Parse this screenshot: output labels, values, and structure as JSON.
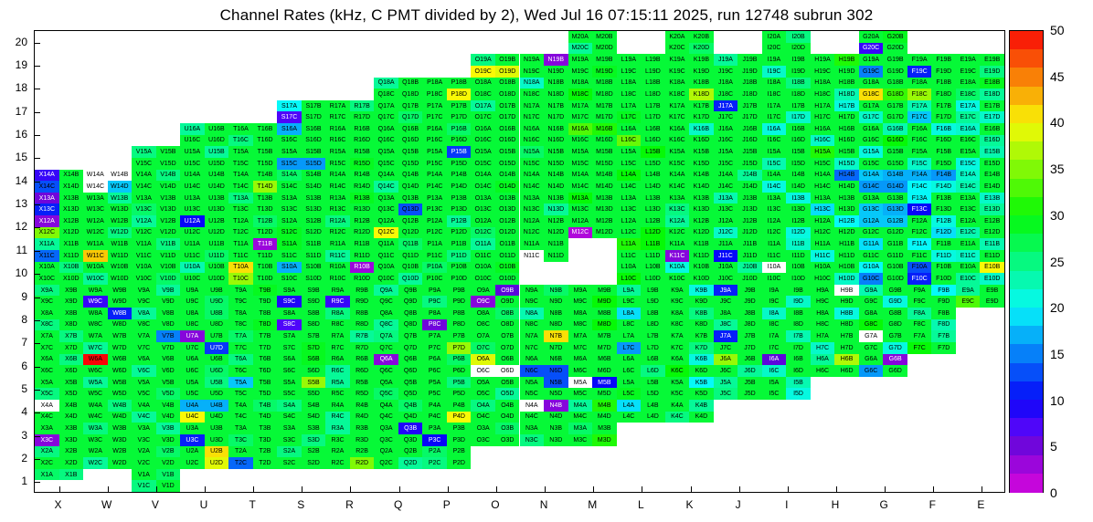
{
  "chart_data": {
    "type": "heatmap",
    "title": "Channel Rates (kHz, C PMT divided by 2), Wed Jul 16 07:15:11 2025, run 12748 subrun 302",
    "unit": "kHz",
    "run": 12748,
    "subrun": 302,
    "timestamp_text": "Wed Jul 16 07:15:11 2025",
    "x_labels": [
      "X",
      "W",
      "V",
      "U",
      "T",
      "S",
      "R",
      "Q",
      "P",
      "O",
      "N",
      "M",
      "L",
      "K",
      "J",
      "I",
      "H",
      "G",
      "F",
      "E"
    ],
    "y_labels": [
      1,
      2,
      3,
      4,
      5,
      6,
      7,
      8,
      9,
      10,
      11,
      12,
      13,
      14,
      15,
      16,
      17,
      18,
      19,
      20
    ],
    "sub_cells": [
      "A",
      "B",
      "C",
      "D"
    ],
    "colorbar": {
      "min": 0,
      "max": 50,
      "ticks": [
        0,
        5,
        10,
        15,
        20,
        25,
        30,
        35,
        40,
        45,
        50
      ],
      "position": "right"
    },
    "grid": false,
    "default_value": 28,
    "rows": [
      {
        "n": 20,
        "cols": [
          "M",
          "K",
          "I",
          "G"
        ]
      },
      {
        "n": 19,
        "cols": [
          "O",
          "N",
          "M",
          "L",
          "K",
          "J",
          "I",
          "H",
          "G",
          "F",
          "E"
        ]
      },
      {
        "n": 18,
        "cols": [
          "Q",
          "P",
          "O",
          "N",
          "M",
          "L",
          "K",
          "J",
          "I",
          "H",
          "G",
          "F",
          "E"
        ]
      },
      {
        "n": 17,
        "cols": [
          "S",
          "R",
          "Q",
          "P",
          "O",
          "N",
          "M",
          "L",
          "K",
          "J",
          "I",
          "H",
          "G",
          "F",
          "E"
        ]
      },
      {
        "n": 16,
        "cols": [
          "U",
          "T",
          "S",
          "R",
          "Q",
          "P",
          "O",
          "N",
          "M",
          "L",
          "K",
          "J",
          "I",
          "H",
          "G",
          "F",
          "E"
        ]
      },
      {
        "n": 15,
        "cols": [
          "V",
          "U",
          "T",
          "S",
          "R",
          "Q",
          "P",
          "O",
          "N",
          "M",
          "L",
          "K",
          "J",
          "I",
          "H",
          "G",
          "F",
          "E"
        ]
      },
      {
        "n": 14,
        "cols": [
          "X",
          "W",
          "V",
          "U",
          "T",
          "S",
          "R",
          "Q",
          "P",
          "O",
          "N",
          "M",
          "L",
          "K",
          "J",
          "I",
          "H",
          "G",
          "F",
          "E"
        ]
      },
      {
        "n": 13,
        "cols": [
          "X",
          "W",
          "V",
          "U",
          "T",
          "S",
          "R",
          "Q",
          "P",
          "O",
          "N",
          "M",
          "L",
          "K",
          "J",
          "I",
          "H",
          "G",
          "F",
          "E"
        ]
      },
      {
        "n": 12,
        "cols": [
          "X",
          "W",
          "V",
          "U",
          "T",
          "S",
          "R",
          "Q",
          "P",
          "O",
          "N",
          "M",
          "L",
          "K",
          "J",
          "I",
          "H",
          "G",
          "F",
          "E"
        ]
      },
      {
        "n": 11,
        "cols": [
          "X",
          "W",
          "V",
          "U",
          "T",
          "S",
          "R",
          "Q",
          "P",
          "O",
          "N",
          "L",
          "K",
          "J",
          "I",
          "H",
          "G",
          "F",
          "E"
        ]
      },
      {
        "n": 10,
        "cols": [
          "X",
          "W",
          "V",
          "U",
          "T",
          "S",
          "R",
          "Q",
          "P",
          "O",
          "L",
          "K",
          "J",
          "I",
          "H",
          "G",
          "F",
          "E"
        ]
      },
      {
        "n": 9,
        "cols": [
          "X",
          "W",
          "V",
          "U",
          "T",
          "S",
          "R",
          "Q",
          "P",
          "O",
          "N",
          "M",
          "L",
          "K",
          "J",
          "I",
          "H",
          "G",
          "F",
          "E"
        ]
      },
      {
        "n": 8,
        "cols": [
          "X",
          "W",
          "V",
          "U",
          "T",
          "S",
          "R",
          "Q",
          "P",
          "O",
          "N",
          "M",
          "L",
          "K",
          "J",
          "I",
          "H",
          "G",
          "F"
        ]
      },
      {
        "n": 7,
        "cols": [
          "X",
          "W",
          "V",
          "U",
          "T",
          "S",
          "R",
          "Q",
          "P",
          "O",
          "N",
          "M",
          "L",
          "K",
          "J",
          "I",
          "H",
          "G",
          "F"
        ]
      },
      {
        "n": 6,
        "cols": [
          "X",
          "W",
          "V",
          "U",
          "T",
          "S",
          "R",
          "Q",
          "P",
          "O",
          "N",
          "M",
          "L",
          "K",
          "J",
          "I",
          "H",
          "G"
        ]
      },
      {
        "n": 5,
        "cols": [
          "X",
          "W",
          "V",
          "U",
          "T",
          "S",
          "R",
          "Q",
          "P",
          "O",
          "N",
          "M",
          "L",
          "K",
          "J",
          "I"
        ]
      },
      {
        "n": 4,
        "cols": [
          "X",
          "W",
          "V",
          "U",
          "T",
          "S",
          "R",
          "Q",
          "P",
          "O",
          "N",
          "M",
          "L",
          "K"
        ]
      },
      {
        "n": 3,
        "cols": [
          "X",
          "W",
          "V",
          "U",
          "T",
          "S",
          "R",
          "Q",
          "P",
          "O",
          "N",
          "M"
        ]
      },
      {
        "n": 2,
        "cols": [
          "X",
          "W",
          "V",
          "U",
          "T",
          "S",
          "R",
          "Q",
          "P"
        ]
      },
      {
        "n": 1,
        "cols": [
          "X",
          "V"
        ]
      }
    ],
    "omitted_cells": [
      "X1C",
      "X1D"
    ],
    "values": {
      "M20C": 24,
      "K20D": 26,
      "I20B": 25,
      "G20B": 29,
      "G20C": 8,
      "O19A": 25,
      "O19C": 40,
      "O19D": 39,
      "N19B": 4,
      "M19D": 29,
      "J19A": 24,
      "I19C": 22,
      "H19B": 31,
      "G19C": 15,
      "F19C": 11,
      "E19D": 25,
      "Q18A": 24,
      "P18D": 40,
      "N18A": 22,
      "M18C": 30,
      "K18D": 37,
      "I18B": 25,
      "H18D": 23,
      "G18C": 41,
      "G18D": 32,
      "F18C": 36,
      "E18B": 29,
      "E18C": 26,
      "E18D": 24,
      "S17A": 20,
      "S17C": 7,
      "R17B": 25,
      "Q17D": 26,
      "O17A": 24,
      "L17C": 29,
      "J17A": 11,
      "I17D": 22,
      "H17B": 21,
      "G17C": 22,
      "F17A": 23,
      "F17C": 18,
      "E17A": 21,
      "E17C": 24,
      "E17D": 22,
      "U16A": 24,
      "T16C": 25,
      "S16A": 17,
      "P16B": 26,
      "M16A": 33,
      "M16B": 31,
      "L16C": 34,
      "K16B": 22,
      "I16A": 21,
      "H16C": 22,
      "G16B": 23,
      "G16D": 30,
      "F16B": 21,
      "E16A": 22,
      "E16D": 24,
      "V15A": 25,
      "U15B": 24,
      "S15C": 16,
      "S15D": 16,
      "R15D": 29,
      "P15B": 12,
      "N15A": 26,
      "L15B": 30,
      "I15C": 23,
      "H15A": 31,
      "H15D": 22,
      "G15A": 21,
      "F15C": 22,
      "E15B": 23,
      "E15C": 21,
      "X14A": 8,
      "X14C": 13,
      "W14A": null,
      "W14B": null,
      "W14C": null,
      "W14D": 18,
      "V14B": 25,
      "T14D": 36,
      "S14A": 26,
      "Q14C": 24,
      "O14D": 29,
      "L14A": 30,
      "J14B": 24,
      "I14C": 21,
      "H14B": 14,
      "G14A": 18,
      "G14B": 17,
      "G14C": 16,
      "G14D": 16,
      "F14A": 17,
      "F14B": 16,
      "F14C": 20,
      "F14D": 21,
      "E14A": 22,
      "E14C": 23,
      "X13A": 5,
      "X13C": 11,
      "W13B": 24,
      "V13C": 26,
      "T13A": 25,
      "R13B": 29,
      "Q13D": 13,
      "N13D": 24,
      "M13A": 30,
      "K13C": 25,
      "J13A": 23,
      "I13B": 21,
      "H13C": 19,
      "G13C": 18,
      "G13D": 17,
      "F13A": 20,
      "F13C": 10,
      "E13B": 22,
      "E13D": 24,
      "X12A": 4,
      "X12C": 35,
      "W12D": 25,
      "V12A": 24,
      "U12A": 10,
      "T12B": 26,
      "S12C": 29,
      "R12A": 25,
      "Q12C": 40,
      "P12B": 24,
      "O12C": 26,
      "N12B": 28,
      "M12C": 2,
      "L12D": 30,
      "K12A": 24,
      "J12C": 22,
      "I12D": 21,
      "H12B": 20,
      "G12A": 18,
      "G12B": 18,
      "F12B": 21,
      "F12D": 19,
      "E12C": 23,
      "X11A": 24,
      "X11C": 14,
      "W11C": 42,
      "V11B": 25,
      "U11D": 26,
      "T11B": 3,
      "S11A": 29,
      "R11C": 24,
      "Q11B": 26,
      "P11D": 25,
      "O11A": 24,
      "N11C": null,
      "L11A": 31,
      "L11B": 30,
      "K11C": 4,
      "J11C": 10,
      "I11B": 22,
      "H11C": 21,
      "G11A": 19,
      "F11A": 20,
      "F11D": 21,
      "E11B": 23,
      "E11C": 22,
      "X10B": 25,
      "W10C": 24,
      "V10D": 26,
      "U10A": 23,
      "T10A": 41,
      "T10C": 36,
      "S10A": 17,
      "R10B": 3,
      "Q10D": 24,
      "P10A": 26,
      "O10B": 29,
      "L10C": 30,
      "K10A": 21,
      "J10B": 24,
      "I10A": null,
      "H10D": 22,
      "G10A": 20,
      "G10C": 15,
      "F10A": 13,
      "F10C": 11,
      "E10B": 40,
      "E10C": 24,
      "E10D": 22,
      "X9A": 25,
      "W9C": 8,
      "V9B": 24,
      "U9D": 26,
      "T9B": 29,
      "S9C": 9,
      "R9C": 8,
      "Q9A": 24,
      "P9C": 25,
      "O9B": 6,
      "O9C": 4,
      "N9B": 26,
      "M9D": 30,
      "L9A": 24,
      "K9B": 21,
      "J9A": 11,
      "I9D": 22,
      "H9B": null,
      "G9A": 23,
      "G9D": 21,
      "F9B": 20,
      "E9A": 24,
      "E9C": 33,
      "X8C": 25,
      "W8B": 11,
      "V8A": 24,
      "U8B": 26,
      "T8D": 29,
      "S8C": 7,
      "R8A": 25,
      "Q8C": 24,
      "P8C": 5,
      "O8B": 26,
      "N8A": 23,
      "M8D": 30,
      "L8A": 19,
      "K8B": 25,
      "J8C": 24,
      "I8A": 22,
      "H8B": 21,
      "G8C": 30,
      "F8A": 24,
      "F8D": 23,
      "X7B": 25,
      "W7C": 24,
      "V7B": 15,
      "U7A": 4,
      "U7D": 12,
      "T7A": 26,
      "S7D": 29,
      "R7B": 24,
      "Q7A": 25,
      "P7D": 36,
      "O7C": 26,
      "N7B": 41,
      "M7B": 28,
      "L7C": 16,
      "K7D": 25,
      "J7A": 11,
      "I7B": 23,
      "H7C": 22,
      "G7A": null,
      "G7D": 21,
      "F7B": 24,
      "F7C": 30,
      "X6B": 25,
      "W6A": 50,
      "V6C": 24,
      "U6D": 26,
      "T6A": 25,
      "S6B": 29,
      "R6C": 24,
      "Q6A": 4,
      "P6B": 26,
      "O6A": 39,
      "O6C": null,
      "O6D": null,
      "N6C": 13,
      "N6D": 13,
      "M6A": 28,
      "L6D": 25,
      "K6B": 21,
      "K6C": 30,
      "J6A": 36,
      "J6D": 24,
      "I6A": 6,
      "I6C": 22,
      "H6A": 24,
      "H6B": 37,
      "G6B": 4,
      "G6C": 16,
      "X5C": 25,
      "W5A": 24,
      "V5D": 26,
      "U5B": 25,
      "T5A": 18,
      "S5B": 36,
      "R5A": 24,
      "Q5C": 26,
      "P5B": 25,
      "O5D": 24,
      "N5B": 13,
      "M5A": null,
      "M5B": 10,
      "L5C": 29,
      "K5B": 20,
      "J5A": 24,
      "J5C": 25,
      "I5B": 23,
      "I5D": 21,
      "X4A": null,
      "W4B": 25,
      "V4C": 24,
      "U4A": 17,
      "U4B": 17,
      "U4C": 40,
      "T4B": 26,
      "S4A": 25,
      "R4C": 24,
      "Q4B": 26,
      "P4D": 40,
      "O4A": 25,
      "N4A": null,
      "N4B": 4,
      "M4A": 24,
      "M4B": 31,
      "L4A": 19,
      "L4D": 28,
      "K4B": 24,
      "K4C": 25,
      "X3C": 4,
      "W3A": 25,
      "V3B": 24,
      "U3C": 11,
      "T3C": 26,
      "S3D": 25,
      "R3A": 24,
      "Q3B": 9,
      "P3C": 10,
      "O3B": 26,
      "N3C": 25,
      "M3A": 26,
      "M3D": 31,
      "X2A": 25,
      "W2C": 24,
      "V2B": 26,
      "U2B": 41,
      "U2D": 39,
      "T2C": 14,
      "S2A": 25,
      "R2D": 35,
      "Q2D": 24,
      "P2A": 26,
      "P2C": 25,
      "X1A": 26,
      "X1B": 25,
      "V1B": 26,
      "V1C": 25
    }
  }
}
